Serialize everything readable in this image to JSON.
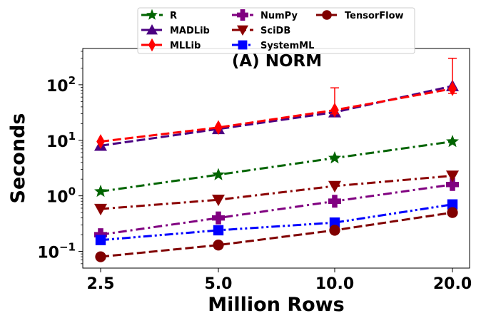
{
  "chart_data": {
    "type": "line",
    "title": "(A) NORM",
    "xlabel": "Million Rows",
    "ylabel": "Seconds",
    "x": [
      2.5,
      5.0,
      10.0,
      20.0
    ],
    "x_tick_labels": [
      "2.5",
      "5.0",
      "10.0",
      "20.0"
    ],
    "y_scale": "log",
    "y_ticks": [
      {
        "value": 0.1,
        "base": "10",
        "exp": "−1"
      },
      {
        "value": 1,
        "base": "10",
        "exp": "0"
      },
      {
        "value": 10,
        "base": "10",
        "exp": "1"
      },
      {
        "value": 100,
        "base": "10",
        "exp": "2"
      }
    ],
    "ylim": [
      0.05,
      450
    ],
    "legend_position": "top-center",
    "legend_columns": 3,
    "grid": false,
    "series": [
      {
        "name": "R",
        "color": "#006400",
        "dash": "dot-dash",
        "marker": "star",
        "values": [
          1.2,
          2.4,
          4.8,
          9.5
        ]
      },
      {
        "name": "MADLib",
        "color": "#4b0082",
        "dash": "dash",
        "marker": "triangle-up",
        "values": [
          8.0,
          16.0,
          32.0,
          95.0
        ]
      },
      {
        "name": "MLLib",
        "color": "#ff0000",
        "dash": "dash",
        "marker": "thin-diamond",
        "values": [
          9.5,
          17.0,
          35.0,
          85.0
        ],
        "error_high": [
          null,
          null,
          88.0,
          300.0
        ],
        "error_low": [
          null,
          null,
          30.0,
          70.0
        ]
      },
      {
        "name": "NumPy",
        "color": "#800080",
        "dash": "dot-dash",
        "marker": "plus",
        "values": [
          0.2,
          0.4,
          0.8,
          1.6
        ]
      },
      {
        "name": "SciDB",
        "color": "#8b0000",
        "dash": "dot-dash",
        "marker": "triangle-down",
        "values": [
          0.58,
          0.85,
          1.5,
          2.3
        ]
      },
      {
        "name": "SystemML",
        "color": "#0000ff",
        "dash": "dot-dot-dash",
        "marker": "square",
        "values": [
          0.16,
          0.24,
          0.33,
          0.7
        ]
      },
      {
        "name": "TensorFlow",
        "color": "#800000",
        "dash": "dash",
        "marker": "circle",
        "values": [
          0.08,
          0.13,
          0.24,
          0.5
        ]
      }
    ]
  }
}
